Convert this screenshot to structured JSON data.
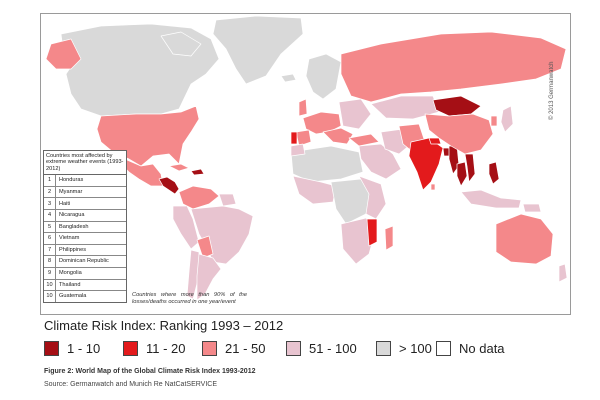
{
  "copyright": "© 2013 Germanwatch",
  "ranking_table": {
    "title": "Countries most affected by extreme weather events (1993-2012)",
    "rows": [
      {
        "rank": "1",
        "country": "Honduras"
      },
      {
        "rank": "2",
        "country": "Myanmar"
      },
      {
        "rank": "3",
        "country": "Haiti"
      },
      {
        "rank": "4",
        "country": "Nicaragua"
      },
      {
        "rank": "5",
        "country": "Bangladesh"
      },
      {
        "rank": "6",
        "country": "Vietnam"
      },
      {
        "rank": "7",
        "country": "Philippines"
      },
      {
        "rank": "8",
        "country": "Dominican Republic"
      },
      {
        "rank": "9",
        "country": "Mongolia"
      },
      {
        "rank": "10",
        "country": "Thailand"
      },
      {
        "rank": "10",
        "country": "Guatemala"
      }
    ]
  },
  "footnote": "Countries where more than 90% of the losses/deaths occurred in one year/event",
  "legend": {
    "title": "Climate Risk Index: Ranking 1993 – 2012",
    "items": [
      {
        "label": "1 - 10",
        "color": "#a50f15"
      },
      {
        "label": "11 - 20",
        "color": "#e31a1c"
      },
      {
        "label": "21 - 50",
        "color": "#f4888a"
      },
      {
        "label": "51 - 100",
        "color": "#e8c4d0"
      },
      {
        "label": "> 100",
        "color": "#d9d9d9"
      },
      {
        "label": "No data",
        "color": "#ffffff"
      }
    ]
  },
  "colors": {
    "rank_1_10": "#a50f15",
    "rank_11_20": "#e31a1c",
    "rank_21_50": "#f4888a",
    "rank_51_100": "#e8c4d0",
    "rank_gt_100": "#d9d9d9",
    "no_data": "#ffffff",
    "border": "#ffffff"
  },
  "figure_caption": "Figure 2: World Map of the Global Climate Risk Index 1993-2012",
  "source": "Source: Germanwatch and Munich Re NatCatSERVICE"
}
